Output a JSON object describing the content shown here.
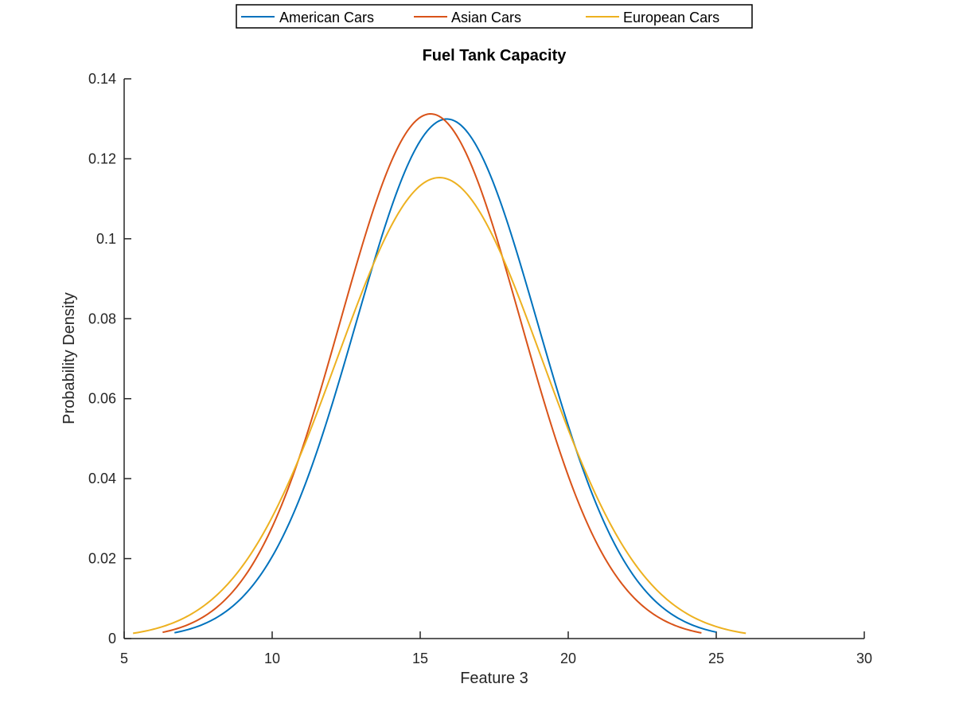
{
  "chart_data": {
    "type": "line",
    "title": "Fuel Tank Capacity",
    "xlabel": "Feature 3",
    "ylabel": "Probability Density",
    "xlim": [
      5,
      30
    ],
    "ylim": [
      0,
      0.14
    ],
    "xticks": [
      5,
      10,
      15,
      20,
      25,
      30
    ],
    "xtick_labels": [
      "5",
      "10",
      "15",
      "20",
      "25",
      "30"
    ],
    "yticks": [
      0,
      0.02,
      0.04,
      0.06,
      0.08,
      0.1,
      0.12,
      0.14
    ],
    "ytick_labels": [
      "0",
      "0.02",
      "0.04",
      "0.06",
      "0.08",
      "0.1",
      "0.12",
      "0.14"
    ],
    "grid": false,
    "legend": "top-outside",
    "series": [
      {
        "name": "American Cars",
        "color": "#0072BD",
        "distribution": "normal",
        "mean": 15.9,
        "std": 3.07,
        "x_range": [
          6.7,
          25.0
        ]
      },
      {
        "name": "Asian Cars",
        "color": "#D95319",
        "distribution": "normal",
        "mean": 15.35,
        "std": 3.04,
        "x_range": [
          6.3,
          24.5
        ]
      },
      {
        "name": "European Cars",
        "color": "#EDB120",
        "distribution": "normal",
        "mean": 15.65,
        "std": 3.46,
        "x_range": [
          5.3,
          26.0
        ]
      }
    ]
  }
}
